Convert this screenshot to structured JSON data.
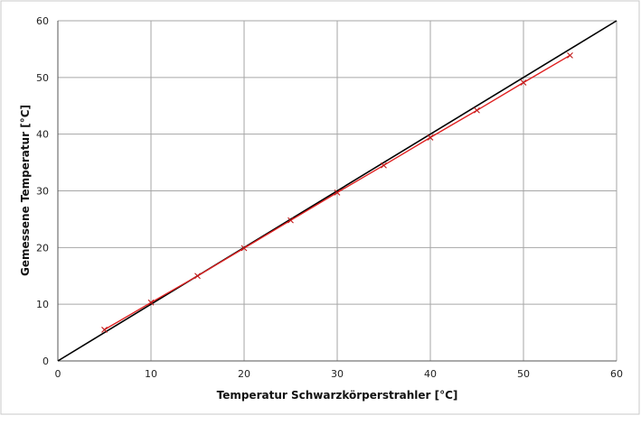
{
  "chart_data": {
    "type": "line",
    "title": "",
    "xlabel": "Temperatur Schwarzkörperstrahler  [°C]",
    "ylabel": "Gemessene Temperatur  [°C]",
    "xlim": [
      0,
      60
    ],
    "ylim": [
      0,
      60
    ],
    "xticks": [
      0,
      10,
      20,
      30,
      40,
      50,
      60
    ],
    "yticks": [
      0,
      10,
      20,
      30,
      40,
      50,
      60
    ],
    "grid": true,
    "legend": "none",
    "series": [
      {
        "color": "#000000",
        "marker": "none",
        "x": [
          0,
          60
        ],
        "y": [
          0,
          60
        ]
      },
      {
        "color": "#e02020",
        "marker": "x",
        "x": [
          5,
          10,
          15,
          20,
          25,
          30,
          35,
          40,
          45,
          50,
          55
        ],
        "y": [
          5.5,
          10.3,
          15.0,
          19.9,
          24.8,
          29.7,
          34.5,
          39.4,
          44.2,
          49.1,
          53.9
        ]
      }
    ]
  }
}
